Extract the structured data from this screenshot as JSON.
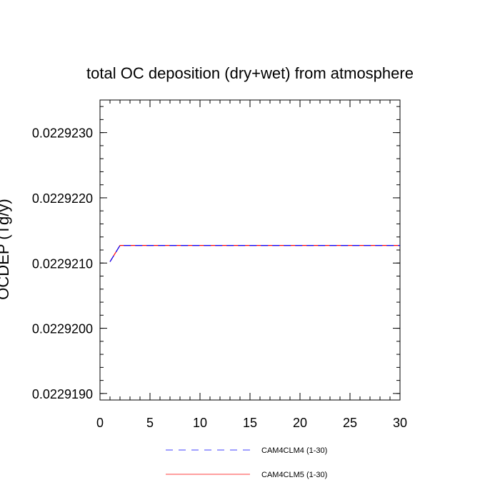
{
  "chart_data": {
    "type": "line",
    "title": "total OC deposition (dry+wet) from atmosphere",
    "ylabel": "OCDEP  (Tg/y)",
    "xlabel": "",
    "xlim": [
      0,
      30
    ],
    "ylim": [
      0.0229189,
      0.0229235
    ],
    "x_ticks": [
      0,
      5,
      10,
      15,
      20,
      25,
      30
    ],
    "x_tick_labels": [
      "0",
      "5",
      "10",
      "15",
      "20",
      "25",
      "30"
    ],
    "y_ticks": [
      0.022919,
      0.02292,
      0.022921,
      0.022922,
      0.022923
    ],
    "y_tick_labels": [
      "0.0229190",
      "0.0229200",
      "0.0229210",
      "0.0229220",
      "0.0229230"
    ],
    "grid": false,
    "legend_position": "bottom",
    "series": [
      {
        "name": "CAM4CLM4 (1-30)",
        "color": "#0000ff",
        "dash": "dashed",
        "x": [
          1,
          2,
          30
        ],
        "y": [
          0.02292102,
          0.02292127,
          0.02292127
        ]
      },
      {
        "name": "CAM4CLM5 (1-30)",
        "color": "#ff0000",
        "dash": "solid",
        "x": [
          1,
          2,
          30
        ],
        "y": [
          0.02292102,
          0.02292127,
          0.02292127
        ]
      }
    ]
  }
}
